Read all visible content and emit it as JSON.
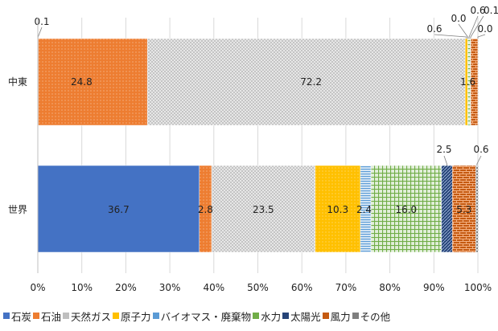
{
  "chart_data": {
    "type": "bar",
    "orientation": "horizontal",
    "stacked": "percent",
    "categories": [
      "中東",
      "世界"
    ],
    "series": [
      {
        "name": "石炭",
        "values": [
          0.1,
          36.7
        ],
        "color": "#4472C4",
        "pattern": "solid"
      },
      {
        "name": "石油",
        "values": [
          24.8,
          2.8
        ],
        "color": "#ED7D31",
        "pattern": "dots"
      },
      {
        "name": "天然ガス",
        "values": [
          72.2,
          23.5
        ],
        "color": "#BFBFBF",
        "pattern": "cross"
      },
      {
        "name": "原子力",
        "values": [
          0.6,
          10.3
        ],
        "color": "#FFC000",
        "pattern": "dots"
      },
      {
        "name": "バイオマス・廃棄物",
        "values": [
          0.0,
          2.4
        ],
        "color": "#5B9BD5",
        "pattern": "hlines"
      },
      {
        "name": "水力",
        "values": [
          0.6,
          16.0
        ],
        "color": "#70AD47",
        "pattern": "grid"
      },
      {
        "name": "太陽光",
        "values": [
          0.1,
          2.5
        ],
        "color": "#264478",
        "pattern": "diag"
      },
      {
        "name": "風力",
        "values": [
          1.6,
          5.3
        ],
        "color": "#C55A11",
        "pattern": "bricks"
      },
      {
        "name": "その他",
        "values": [
          0.0,
          0.6
        ],
        "color": "#7F7F7F",
        "pattern": "checker"
      }
    ],
    "data_labels": [
      [
        "0.1",
        "24.8",
        "72.2",
        "0.6",
        "0.0",
        "0.6",
        "0.1",
        "1.6",
        "0.0"
      ],
      [
        "36.7",
        "2.8",
        "23.5",
        "10.3",
        "2.4",
        "16.0",
        "2.5",
        "5.3",
        "0.6"
      ]
    ],
    "xlim": [
      0,
      100
    ],
    "x_ticks": [
      "0%",
      "10%",
      "20%",
      "30%",
      "40%",
      "50%",
      "60%",
      "70%",
      "80%",
      "90%",
      "100%"
    ],
    "legend_position": "bottom",
    "title": "",
    "xlabel": "",
    "ylabel": ""
  }
}
